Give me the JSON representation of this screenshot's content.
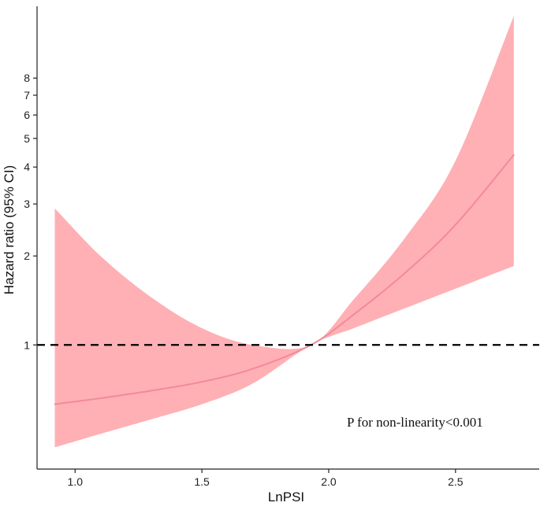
{
  "chart_data": {
    "type": "line",
    "xlabel": "LnPSI",
    "ylabel": "Hazard ratio (95% CI)",
    "y_scale": "log",
    "xlim": [
      0.85,
      2.83
    ],
    "ylim": [
      0.38,
      14.0
    ],
    "x_ticks": [
      {
        "value": 1.0,
        "label": "1.0"
      },
      {
        "value": 1.5,
        "label": "1.5"
      },
      {
        "value": 2.0,
        "label": "2.0"
      },
      {
        "value": 2.5,
        "label": "2.5"
      }
    ],
    "y_ticks": [
      {
        "value": 1,
        "label": "1"
      },
      {
        "value": 2,
        "label": "2"
      },
      {
        "value": 3,
        "label": "3"
      },
      {
        "value": 4,
        "label": "4"
      },
      {
        "value": 5,
        "label": "5"
      },
      {
        "value": 6,
        "label": "6"
      },
      {
        "value": 7,
        "label": "7"
      },
      {
        "value": 8,
        "label": "8"
      }
    ],
    "reference_line": {
      "y": 1,
      "style": "dashed",
      "color": "#000000"
    },
    "series": [
      {
        "line_color": "#f28a9b",
        "band_color": "#ffb0b5",
        "x": [
          0.92,
          1.1,
          1.3,
          1.5,
          1.7,
          1.93,
          2.1,
          2.3,
          2.5,
          2.73
        ],
        "y": [
          0.63,
          0.66,
          0.7,
          0.75,
          0.83,
          1.0,
          1.27,
          1.75,
          2.55,
          4.4
        ],
        "lower": [
          0.45,
          0.5,
          0.56,
          0.63,
          0.74,
          1.0,
          1.14,
          1.33,
          1.55,
          1.85
        ],
        "upper": [
          2.9,
          2.0,
          1.45,
          1.14,
          1.0,
          1.0,
          1.43,
          2.3,
          4.2,
          13.0
        ]
      }
    ],
    "annotations": [
      {
        "text": "P for non-linearity<0.001",
        "x": 2.34,
        "y": 0.53
      }
    ],
    "grid": false,
    "legend": "none"
  }
}
